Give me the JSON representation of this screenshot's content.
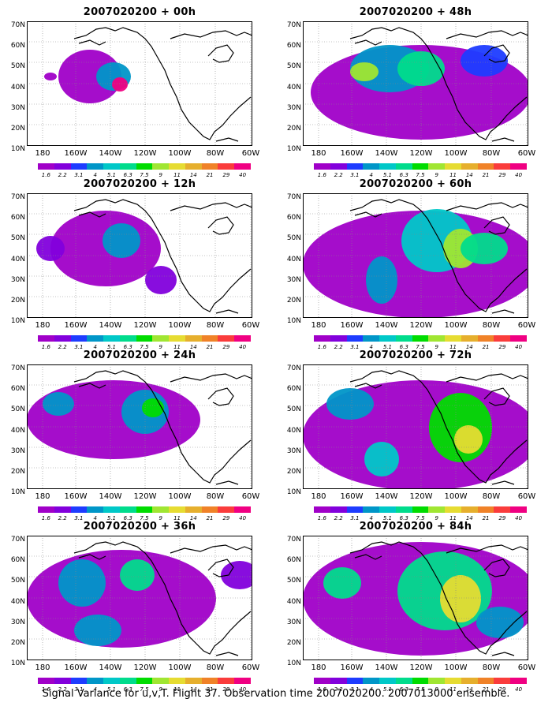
{
  "footer": "Signal Variance for u,v,T. Flight 37. Observation time 2007020200. 2007013000 ensemble.",
  "y_ticks": [
    "70N",
    "60N",
    "50N",
    "40N",
    "30N",
    "20N",
    "10N"
  ],
  "x_ticks": [
    "180",
    "160W",
    "140W",
    "120W",
    "100W",
    "80W",
    "60W"
  ],
  "color_levels": [
    "1.6",
    "2.2",
    "3.1",
    "4",
    "5.1",
    "6.3",
    "7.5",
    "9",
    "11",
    "14",
    "21",
    "29",
    "40"
  ],
  "color_scale": [
    "#a000c8",
    "#8200dc",
    "#1e3cff",
    "#0096c8",
    "#00c8c8",
    "#00dc8c",
    "#00dc00",
    "#a0e632",
    "#e6dc32",
    "#e6af2d",
    "#f08228",
    "#fa3c3c",
    "#f00082"
  ],
  "panels": [
    {
      "title": "2007020200 + 00h",
      "lead_hours": 0
    },
    {
      "title": "2007020200 + 48h",
      "lead_hours": 48
    },
    {
      "title": "2007020200 + 12h",
      "lead_hours": 12
    },
    {
      "title": "2007020200 + 60h",
      "lead_hours": 60
    },
    {
      "title": "2007020200 + 24h",
      "lead_hours": 24
    },
    {
      "title": "2007020200 + 72h",
      "lead_hours": 72
    },
    {
      "title": "2007020200 + 36h",
      "lead_hours": 36
    },
    {
      "title": "2007020200 + 84h",
      "lead_hours": 84
    }
  ],
  "map_extent": {
    "lon_range": [
      "180",
      "60W"
    ],
    "lat_range": [
      "10N",
      "70N"
    ],
    "grid": true
  }
}
